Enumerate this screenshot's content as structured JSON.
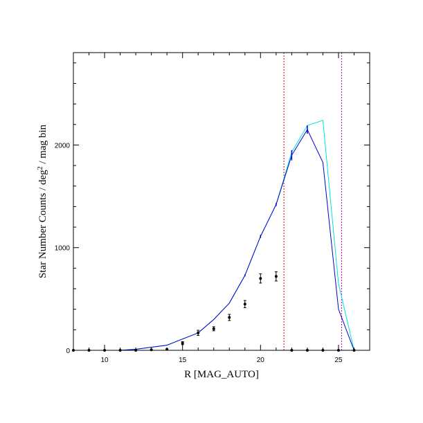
{
  "chart_data": {
    "type": "line",
    "xlabel": "R [MAG_AUTO]",
    "ylabel_main": "Star Number Counts / deg",
    "ylabel_sup": "2",
    "ylabel_tail": " / mag bin",
    "xlim": [
      8,
      27
    ],
    "ylim": [
      0,
      2900
    ],
    "x_ticks": [
      10,
      15,
      20,
      25
    ],
    "y_ticks": [
      0,
      1000,
      2000
    ],
    "x_minor_step": 1,
    "y_minor_step": 200,
    "colors": {
      "model_blue": "#0000cc",
      "model_cyan": "#00e0e0",
      "obs_points": "#000000",
      "limit_red": "#dd0000",
      "limit_magenta": "#cc00cc"
    },
    "series": [
      {
        "kind": "line",
        "color_key": "model_cyan",
        "x": [
          11,
          12,
          13,
          14,
          15,
          16,
          17,
          18,
          19,
          20,
          21,
          22,
          23,
          24,
          25,
          26
        ],
        "y": [
          0,
          10,
          30,
          50,
          110,
          170,
          300,
          460,
          730,
          1110,
          1420,
          1930,
          2190,
          2240,
          650,
          0
        ]
      },
      {
        "kind": "line",
        "color_key": "model_blue",
        "x": [
          11,
          12,
          13,
          14,
          15,
          16,
          17,
          18,
          19,
          20,
          21,
          22,
          23,
          24,
          25,
          26
        ],
        "y": [
          0,
          10,
          30,
          50,
          110,
          170,
          300,
          460,
          730,
          1110,
          1420,
          1900,
          2150,
          1830,
          400,
          0
        ],
        "errors": [
          0,
          0,
          0,
          0,
          0,
          0,
          0,
          0,
          10,
          15,
          15,
          50,
          40,
          0,
          0,
          0
        ]
      },
      {
        "kind": "points",
        "color_key": "obs_points",
        "x": [
          8,
          9,
          10,
          11,
          12,
          13,
          14,
          15,
          16,
          17,
          18,
          19,
          20,
          21,
          22,
          23,
          24,
          25,
          26
        ],
        "y": [
          0,
          0,
          0,
          0,
          0,
          5,
          10,
          70,
          170,
          210,
          320,
          450,
          700,
          720,
          0,
          0,
          0,
          0,
          0
        ],
        "errors": [
          0,
          0,
          0,
          0,
          0,
          0,
          0,
          15,
          25,
          20,
          30,
          35,
          45,
          45,
          0,
          0,
          0,
          0,
          0
        ]
      }
    ],
    "vlines": [
      {
        "x": 21.5,
        "color_key": "limit_red",
        "style": "dotted"
      },
      {
        "x": 25.2,
        "color_key": "limit_magenta",
        "style": "dotted"
      }
    ]
  }
}
